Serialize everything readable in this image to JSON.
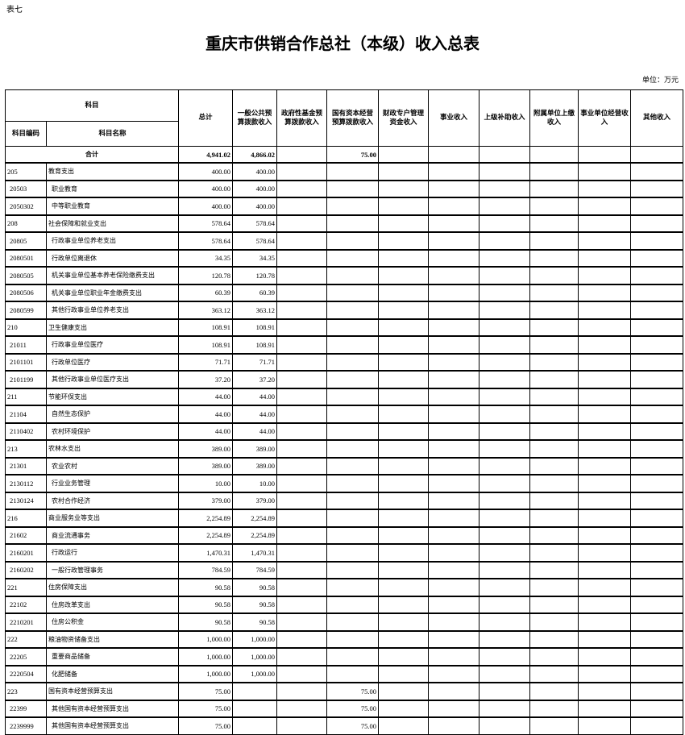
{
  "label": "表七",
  "title": "重庆市供销合作总社（本级）收入总表",
  "unit": "单位：万元",
  "header": {
    "subject": "科目",
    "code": "科目编码",
    "name": "科目名称",
    "columns": [
      "总计",
      "一般公共预算拨款收入",
      "政府性基金预算拨款收入",
      "国有资本经营预算拨款收入",
      "财政专户管理资金收入",
      "事业收入",
      "上级补助收入",
      "附属单位上缴收入",
      "事业单位经营收入",
      "其他收入"
    ]
  },
  "total": {
    "label": "合计",
    "values": [
      "4,941.02",
      "4,866.02",
      "",
      "75.00",
      "",
      "",
      "",
      "",
      "",
      ""
    ]
  },
  "rows": [
    {
      "code": "205",
      "name": "教育支出",
      "total": "400.00",
      "general": "400.00",
      "soe": ""
    },
    {
      "code": "20503",
      "name": "职业教育",
      "total": "400.00",
      "general": "400.00",
      "soe": ""
    },
    {
      "code": "2050302",
      "name": "中等职业教育",
      "total": "400.00",
      "general": "400.00",
      "soe": ""
    },
    {
      "code": "208",
      "name": "社会保障和就业支出",
      "total": "578.64",
      "general": "578.64",
      "soe": ""
    },
    {
      "code": "20805",
      "name": "行政事业单位养老支出",
      "total": "578.64",
      "general": "578.64",
      "soe": ""
    },
    {
      "code": "2080501",
      "name": "行政单位离退休",
      "total": "34.35",
      "general": "34.35",
      "soe": ""
    },
    {
      "code": "2080505",
      "name": "机关事业单位基本养老保险缴费支出",
      "total": "120.78",
      "general": "120.78",
      "soe": ""
    },
    {
      "code": "2080506",
      "name": "机关事业单位职业年金缴费支出",
      "total": "60.39",
      "general": "60.39",
      "soe": ""
    },
    {
      "code": "2080599",
      "name": "其他行政事业单位养老支出",
      "total": "363.12",
      "general": "363.12",
      "soe": ""
    },
    {
      "code": "210",
      "name": "卫生健康支出",
      "total": "108.91",
      "general": "108.91",
      "soe": ""
    },
    {
      "code": "21011",
      "name": "行政事业单位医疗",
      "total": "108.91",
      "general": "108.91",
      "soe": ""
    },
    {
      "code": "2101101",
      "name": "行政单位医疗",
      "total": "71.71",
      "general": "71.71",
      "soe": ""
    },
    {
      "code": "2101199",
      "name": "其他行政事业单位医疗支出",
      "total": "37.20",
      "general": "37.20",
      "soe": ""
    },
    {
      "code": "211",
      "name": "节能环保支出",
      "total": "44.00",
      "general": "44.00",
      "soe": ""
    },
    {
      "code": "21104",
      "name": "自然生态保护",
      "total": "44.00",
      "general": "44.00",
      "soe": ""
    },
    {
      "code": "2110402",
      "name": "农村环境保护",
      "total": "44.00",
      "general": "44.00",
      "soe": ""
    },
    {
      "code": "213",
      "name": "农林水支出",
      "total": "389.00",
      "general": "389.00",
      "soe": ""
    },
    {
      "code": "21301",
      "name": "农业农村",
      "total": "389.00",
      "general": "389.00",
      "soe": ""
    },
    {
      "code": "2130112",
      "name": "行业业务管理",
      "total": "10.00",
      "general": "10.00",
      "soe": ""
    },
    {
      "code": "2130124",
      "name": "农村合作经济",
      "total": "379.00",
      "general": "379.00",
      "soe": ""
    },
    {
      "code": "216",
      "name": "商业服务业等支出",
      "total": "2,254.89",
      "general": "2,254.89",
      "soe": ""
    },
    {
      "code": "21602",
      "name": "商业流通事务",
      "total": "2,254.89",
      "general": "2,254.89",
      "soe": ""
    },
    {
      "code": "2160201",
      "name": "行政运行",
      "total": "1,470.31",
      "general": "1,470.31",
      "soe": ""
    },
    {
      "code": "2160202",
      "name": "一般行政管理事务",
      "total": "784.59",
      "general": "784.59",
      "soe": ""
    },
    {
      "code": "221",
      "name": "住房保障支出",
      "total": "90.58",
      "general": "90.58",
      "soe": ""
    },
    {
      "code": "22102",
      "name": "住房改革支出",
      "total": "90.58",
      "general": "90.58",
      "soe": ""
    },
    {
      "code": "2210201",
      "name": "住房公积金",
      "total": "90.58",
      "general": "90.58",
      "soe": ""
    },
    {
      "code": "222",
      "name": "粮油物资储备支出",
      "total": "1,000.00",
      "general": "1,000.00",
      "soe": ""
    },
    {
      "code": "22205",
      "name": "重要商品储备",
      "total": "1,000.00",
      "general": "1,000.00",
      "soe": ""
    },
    {
      "code": "2220504",
      "name": "化肥储备",
      "total": "1,000.00",
      "general": "1,000.00",
      "soe": ""
    },
    {
      "code": "223",
      "name": "国有资本经营预算支出",
      "total": "75.00",
      "general": "",
      "soe": "75.00"
    },
    {
      "code": "22399",
      "name": "其他国有资本经营预算支出",
      "total": "75.00",
      "general": "",
      "soe": "75.00"
    },
    {
      "code": "2239999",
      "name": "其他国有资本经营预算支出",
      "total": "75.00",
      "general": "",
      "soe": "75.00"
    }
  ]
}
